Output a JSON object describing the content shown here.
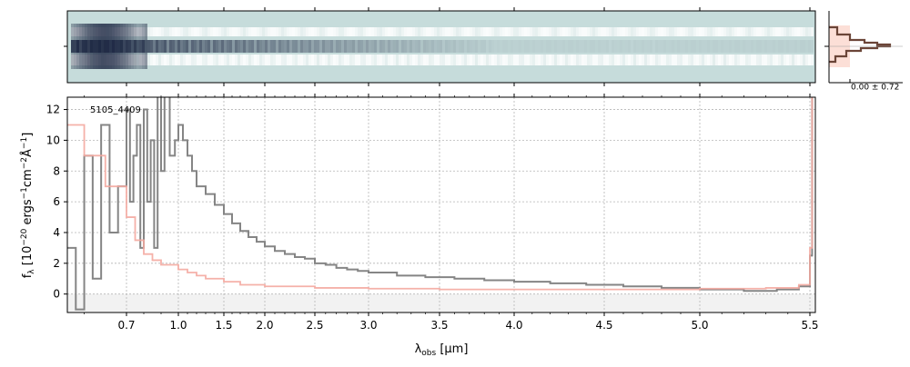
{
  "chart_data": [
    {
      "panel": "2d-spectrum",
      "type": "heatmap",
      "description_free": true,
      "background_color": "#c6dcdb",
      "dark_color": "#1a2440",
      "xlim_wavelength": [
        0.56,
        5.55
      ]
    },
    {
      "panel": "profile",
      "type": "line",
      "annotation": "0.00 ± 0.72",
      "fill_color": "#fbd7cd",
      "line_color": "#6b4538"
    },
    {
      "panel": "1d-spectrum",
      "type": "line",
      "label": "5105_4409",
      "xlabel_main": "λ",
      "xlabel_sub": "obs",
      "xlabel_unit": " [μm]",
      "ylabel_pre": "f",
      "ylabel_sub": "λ",
      "ylabel_unit": " [10",
      "ylabel_exp1": "−20",
      "ylabel_mid": " ergs",
      "ylabel_exp2": "−1",
      "ylabel_cm": "cm",
      "ylabel_exp3": "−2",
      "ylabel_ang": "Å",
      "ylabel_exp4": "−1",
      "ylabel_end": "]",
      "ylim": [
        -1.2,
        12.8
      ],
      "yticks": [
        0,
        2,
        4,
        6,
        8,
        10,
        12
      ],
      "xticks": [
        {
          "label": "0.7",
          "x": 0.7
        },
        {
          "label": "1.0",
          "x": 1.0
        },
        {
          "label": "1.5",
          "x": 1.5
        },
        {
          "label": "2.0",
          "x": 2.0
        },
        {
          "label": "2.5",
          "x": 2.5
        },
        {
          "label": "3.0",
          "x": 3.0
        },
        {
          "label": "3.5",
          "x": 3.5
        },
        {
          "label": "4.0",
          "x": 4.0
        },
        {
          "label": "4.5",
          "x": 4.5
        },
        {
          "label": "5.0",
          "x": 5.0
        },
        {
          "label": "5.5",
          "x": 5.5
        }
      ],
      "grid": true,
      "series": [
        {
          "role": "flux",
          "color": "#858585",
          "x": [
            0.56,
            0.58,
            0.6,
            0.62,
            0.64,
            0.66,
            0.68,
            0.7,
            0.72,
            0.74,
            0.76,
            0.78,
            0.8,
            0.82,
            0.84,
            0.86,
            0.88,
            0.9,
            0.92,
            0.95,
            0.98,
            1.0,
            1.05,
            1.1,
            1.15,
            1.2,
            1.3,
            1.4,
            1.5,
            1.6,
            1.7,
            1.8,
            1.9,
            2.0,
            2.1,
            2.2,
            2.3,
            2.4,
            2.5,
            2.6,
            2.7,
            2.8,
            2.9,
            3.0,
            3.2,
            3.4,
            3.6,
            3.8,
            4.0,
            4.2,
            4.4,
            4.6,
            4.8,
            5.0,
            5.2,
            5.35,
            5.45,
            5.5,
            5.52
          ],
          "y": [
            3,
            -1,
            9,
            1,
            11,
            4,
            7,
            12,
            6,
            9,
            11,
            3,
            12,
            6,
            10,
            3,
            13,
            8,
            13,
            9,
            10,
            11,
            10,
            9,
            8,
            7,
            6.5,
            5.8,
            5.2,
            4.6,
            4.1,
            3.7,
            3.4,
            3.1,
            2.8,
            2.6,
            2.4,
            2.3,
            2.0,
            1.9,
            1.7,
            1.6,
            1.5,
            1.4,
            1.2,
            1.1,
            1.0,
            0.9,
            0.8,
            0.7,
            0.6,
            0.5,
            0.4,
            0.3,
            0.2,
            0.3,
            0.5,
            2.5,
            13
          ]
        },
        {
          "role": "model",
          "color": "#f4a8a0",
          "x": [
            0.56,
            0.6,
            0.65,
            0.7,
            0.75,
            0.8,
            0.85,
            0.9,
            1.0,
            1.1,
            1.2,
            1.3,
            1.5,
            1.7,
            2.0,
            2.5,
            3.0,
            3.5,
            4.0,
            4.5,
            5.0,
            5.3,
            5.45,
            5.5,
            5.52
          ],
          "y": [
            11,
            9,
            7,
            5,
            3.5,
            2.6,
            2.2,
            1.9,
            1.6,
            1.4,
            1.2,
            1.0,
            0.8,
            0.6,
            0.5,
            0.4,
            0.35,
            0.3,
            0.3,
            0.3,
            0.35,
            0.4,
            0.6,
            3,
            13
          ]
        }
      ]
    }
  ]
}
